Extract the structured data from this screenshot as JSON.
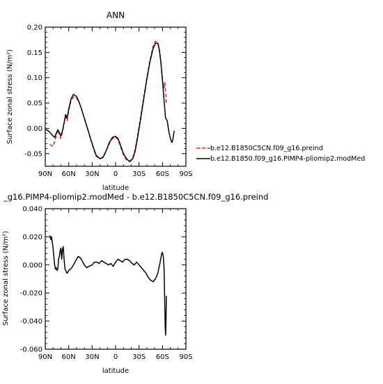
{
  "chart_data": [
    {
      "type": "line",
      "title": "ANN",
      "xlabel": "latitude",
      "ylabel": "Surface zonal stress (N/m²)",
      "xlim": [
        90,
        -90
      ],
      "ylim": [
        -0.075,
        0.2
      ],
      "x_ticks": [
        "90N",
        "60N",
        "30N",
        "0",
        "30S",
        "60S",
        "90S"
      ],
      "x_tick_values": [
        90,
        60,
        30,
        0,
        -30,
        -60,
        -90
      ],
      "y_ticks": [
        "0.20",
        "0.15",
        "0.10",
        "0.05",
        "0.00",
        "-0.05"
      ],
      "y_tick_values": [
        0.2,
        0.15,
        0.1,
        0.05,
        0.0,
        -0.05
      ],
      "legend_placement": "right",
      "series": [
        {
          "name": "b.e12.B1850C5CN.f09_g16.preind",
          "color": "#e8201b",
          "dash": "dashed",
          "x": [
            84,
            80,
            76,
            74,
            72,
            70,
            68,
            66,
            64,
            62,
            60,
            57,
            54,
            50,
            47,
            44,
            40,
            35,
            30,
            25,
            20,
            16,
            12,
            8,
            4,
            0,
            -3,
            -6,
            -10,
            -14,
            -18,
            -22,
            -25,
            -28,
            -32,
            -36,
            -40,
            -44,
            -48,
            -51,
            -54,
            -56,
            -58,
            -60,
            -62,
            -63,
            -64,
            -65
          ],
          "y": [
            -0.032,
            -0.036,
            -0.015,
            -0.003,
            -0.012,
            -0.02,
            -0.008,
            0.01,
            0.022,
            0.015,
            0.035,
            0.055,
            0.062,
            0.06,
            0.052,
            0.04,
            0.02,
            -0.005,
            -0.032,
            -0.055,
            -0.06,
            -0.058,
            -0.045,
            -0.03,
            -0.02,
            -0.018,
            -0.022,
            -0.035,
            -0.052,
            -0.063,
            -0.065,
            -0.058,
            -0.042,
            -0.015,
            0.022,
            0.062,
            0.1,
            0.135,
            0.162,
            0.172,
            0.17,
            0.155,
            0.13,
            0.095,
            0.08,
            0.09,
            0.07,
            0.048
          ]
        },
        {
          "name": "b.e12.B1850.f09_g16.PIMP4-pliomip2.modMed",
          "color": "#000000",
          "dash": "solid",
          "x": [
            90,
            86,
            84,
            82,
            80,
            78,
            76,
            74,
            72,
            70,
            68,
            66,
            64,
            62,
            60,
            57,
            54,
            50,
            47,
            44,
            40,
            35,
            30,
            25,
            20,
            16,
            12,
            8,
            4,
            0,
            -3,
            -6,
            -10,
            -14,
            -18,
            -22,
            -25,
            -28,
            -32,
            -36,
            -40,
            -44,
            -48,
            -51,
            -54,
            -56,
            -58,
            -60,
            -62,
            -64,
            -66,
            -68,
            -70,
            -72,
            -73,
            -74,
            -75
          ],
          "y": [
            -0.002,
            -0.005,
            -0.008,
            -0.012,
            -0.015,
            -0.018,
            -0.01,
            -0.003,
            -0.008,
            -0.015,
            -0.005,
            0.01,
            0.027,
            0.02,
            0.038,
            0.058,
            0.067,
            0.063,
            0.053,
            0.04,
            0.02,
            -0.005,
            -0.03,
            -0.053,
            -0.06,
            -0.057,
            -0.044,
            -0.028,
            -0.018,
            -0.016,
            -0.02,
            -0.032,
            -0.05,
            -0.06,
            -0.066,
            -0.06,
            -0.045,
            -0.02,
            0.018,
            0.058,
            0.097,
            0.132,
            0.158,
            0.168,
            0.168,
            0.155,
            0.13,
            0.095,
            0.055,
            0.02,
            0.015,
            -0.005,
            -0.02,
            -0.028,
            -0.025,
            -0.015,
            -0.005
          ]
        }
      ]
    },
    {
      "type": "line",
      "title": "_g16.PIMP4-pliomip2.modMed - b.e12.B1850C5CN.f09_g16.preind",
      "xlabel": "latitude",
      "ylabel": "Surface zonal stress (N/m²)",
      "xlim": [
        90,
        -90
      ],
      "ylim": [
        -0.06,
        0.04
      ],
      "x_ticks": [
        "90N",
        "60N",
        "30N",
        "0",
        "30S",
        "60S",
        "90S"
      ],
      "x_tick_values": [
        90,
        60,
        30,
        0,
        -30,
        -60,
        -90
      ],
      "y_ticks": [
        "0.040",
        "0.020",
        "0.000",
        "-0.020",
        "-0.040",
        "-0.060"
      ],
      "y_tick_values": [
        0.04,
        0.02,
        0.0,
        -0.02,
        -0.04,
        -0.06
      ],
      "series": [
        {
          "color": "#000000",
          "dash": "solid",
          "x": [
            84,
            83,
            82,
            81,
            80,
            79,
            78,
            77,
            76,
            75,
            74,
            73,
            72,
            71,
            70,
            69,
            68,
            67,
            66,
            65,
            64,
            62,
            60,
            58,
            56,
            54,
            52,
            50,
            48,
            45,
            42,
            40,
            37,
            34,
            30,
            27,
            24,
            21,
            18,
            15,
            12,
            9,
            6,
            3,
            0,
            -3,
            -6,
            -9,
            -12,
            -15,
            -18,
            -21,
            -24,
            -27,
            -30,
            -33,
            -36,
            -39,
            -42,
            -45,
            -48,
            -51,
            -54,
            -57,
            -59,
            -60,
            -61,
            -62,
            -63,
            -63.5,
            -64,
            -64.5,
            -65
          ],
          "y": [
            0.021,
            0.018,
            0.02,
            0.016,
            0.012,
            0.006,
            0.0,
            -0.003,
            -0.002,
            -0.004,
            -0.003,
            0.004,
            0.006,
            0.01,
            0.012,
            0.004,
            0.011,
            0.013,
            0.005,
            -0.002,
            -0.004,
            -0.006,
            -0.004,
            -0.003,
            -0.002,
            0.0,
            0.002,
            0.004,
            0.006,
            0.005,
            0.002,
            0.0,
            -0.002,
            -0.001,
            0.0,
            0.002,
            0.002,
            0.001,
            0.003,
            0.002,
            0.001,
            0.0,
            0.001,
            -0.001,
            0.002,
            0.004,
            0.003,
            0.002,
            0.004,
            0.004,
            0.003,
            0.001,
            0.0,
            0.002,
            0.0,
            -0.002,
            -0.004,
            -0.006,
            -0.009,
            -0.011,
            -0.012,
            -0.01,
            -0.006,
            0.002,
            0.008,
            0.009,
            0.006,
            -0.002,
            -0.03,
            -0.045,
            -0.05,
            -0.04,
            -0.022
          ]
        }
      ]
    }
  ]
}
